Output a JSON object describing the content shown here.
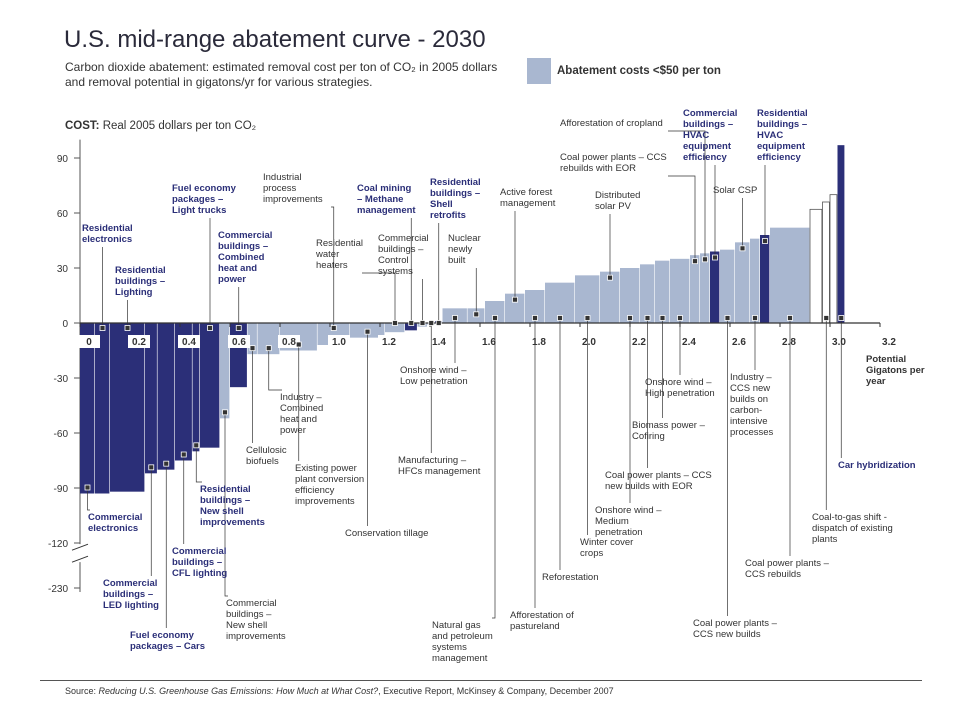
{
  "chart_data": {
    "type": "cost_curve",
    "title": "U.S. mid-range abatement curve - 2030",
    "subtitle": "Carbon dioxide abatement: estimated removal cost per ton of CO₂ in 2005 dollars and removal potential in gigatons/yr for various strategies.",
    "legend": {
      "label": "Abatement costs <$50 per ton",
      "color": "#a9b7d0"
    },
    "y_label_bold": "COST:",
    "y_label": "Real 2005 dollars per ton CO₂",
    "x_label": "Potential Gigatons per year",
    "source_prefix": "Source:",
    "source_title": "Reducing U.S. Greenhouse Gas Emissions: How Much at What Cost?",
    "source_rest": ", Executive Report, McKinsey & Company, December 2007",
    "xlim": [
      0,
      3.2
    ],
    "xticks": [
      0,
      0.2,
      0.4,
      0.6,
      0.8,
      {
        "value": 1,
        "label": "1.0"
      },
      1.2,
      1.4,
      1.6,
      1.8,
      {
        "value": 2,
        "label": "2.0"
      },
      2.2,
      2.4,
      2.6,
      2.8,
      {
        "value": 3,
        "label": "3.0"
      },
      3.2
    ],
    "ylim": [
      -230,
      100
    ],
    "y_break": -125,
    "yticks": [
      90,
      60,
      30,
      0,
      -30,
      -60,
      -90,
      -120,
      -230
    ],
    "categories": [
      "Commercial electronics",
      "Residential electronics",
      "Residential buildings – Lighting",
      "Commercial buildings – LED lighting",
      "Fuel economy packages – Cars",
      "Commercial buildings – CFL lighting",
      "Residential buildings – New shell improvements",
      "Fuel economy packages – Light trucks",
      "Commercial buildings – New shell improvements",
      "Commercial buildings – Combined heat and power",
      "Cellulosic biofuels",
      "Industry – Combined heat and power",
      "Existing power plant conversion efficiency improvements",
      "Industrial process improvements",
      "Conservation tillage",
      "Residential water heaters",
      "Coal mining – Methane management",
      "Commercial buildings – Control systems",
      "Manufacturing – HFCs management",
      "Residential buildings – Shell retrofits",
      "Onshore wind – Low penetration",
      "Nuclear newly built",
      "Natural gas and petroleum systems management",
      "Active forest management",
      "Afforestation of pastureland",
      "Reforestation",
      "Winter cover crops",
      "Distributed solar PV",
      "Onshore wind – Medium penetration",
      "Coal power plants – CCS new builds with EOR",
      "Biomass power – Cofiring",
      "Onshore wind – High penetration",
      "Coal power plants – CCS rebuilds with EOR",
      "Afforestation of cropland",
      "Commercial buildings – HVAC equipment efficiency",
      "Coal power plants – CCS new builds",
      "Solar CSP",
      "Industry – CCS new builds on carbon-intensive processes",
      "Residential buildings – HVAC equipment efficiency",
      "Coal power plants – CCS rebuilds",
      null,
      "Coal-to-gas shift - dispatch of existing plants",
      null,
      "Car hybridization"
    ],
    "widths": [
      0.06,
      0.06,
      0.14,
      0.05,
      0.07,
      0.07,
      0.03,
      0.08,
      0.04,
      0.07,
      0.04,
      0.09,
      0.15,
      0.13,
      0.14,
      0.08,
      0.05,
      0.04,
      0.03,
      0.03,
      0.1,
      0.07,
      0.08,
      0.08,
      0.08,
      0.12,
      0.1,
      0.08,
      0.08,
      0.06,
      0.06,
      0.08,
      0.04,
      0.04,
      0.04,
      0.06,
      0.06,
      0.04,
      0.04,
      0.16,
      0.05,
      0.03,
      0.03,
      0.03
    ],
    "values": [
      -93,
      -93,
      -92,
      -82,
      -80,
      -75,
      -70,
      -68,
      -52,
      -35,
      -17,
      -17,
      -15,
      -12,
      -8,
      -5,
      -4,
      -2,
      -1,
      1,
      8,
      8,
      12,
      16,
      18,
      22,
      26,
      28,
      30,
      32,
      34,
      35,
      37,
      38,
      39,
      40,
      44,
      46,
      48,
      52,
      62,
      66,
      70,
      97
    ],
    "colors": [
      "#2b2f78",
      "#2b2f78",
      "#2b2f78",
      "#2b2f78",
      "#2b2f78",
      "#2b2f78",
      "#2b2f78",
      "#2b2f78",
      "#a9b7d0",
      "#2b2f78",
      "#a9b7d0",
      "#a9b7d0",
      "#a9b7d0",
      "#a9b7d0",
      "#a9b7d0",
      "#a9b7d0",
      "#2b2f78",
      "#a9b7d0",
      "#a9b7d0",
      "#2b2f78",
      "#a9b7d0",
      "#a9b7d0",
      "#a9b7d0",
      "#a9b7d0",
      "#a9b7d0",
      "#a9b7d0",
      "#a9b7d0",
      "#a9b7d0",
      "#a9b7d0",
      "#a9b7d0",
      "#a9b7d0",
      "#a9b7d0",
      "#a9b7d0",
      "#a9b7d0",
      "#2b2f78",
      "#a9b7d0",
      "#a9b7d0",
      "#a9b7d0",
      "#2b2f78",
      "#a9b7d0",
      "#ffffff",
      "#ffffff",
      "#ffffff",
      "#2b2f78"
    ]
  }
}
